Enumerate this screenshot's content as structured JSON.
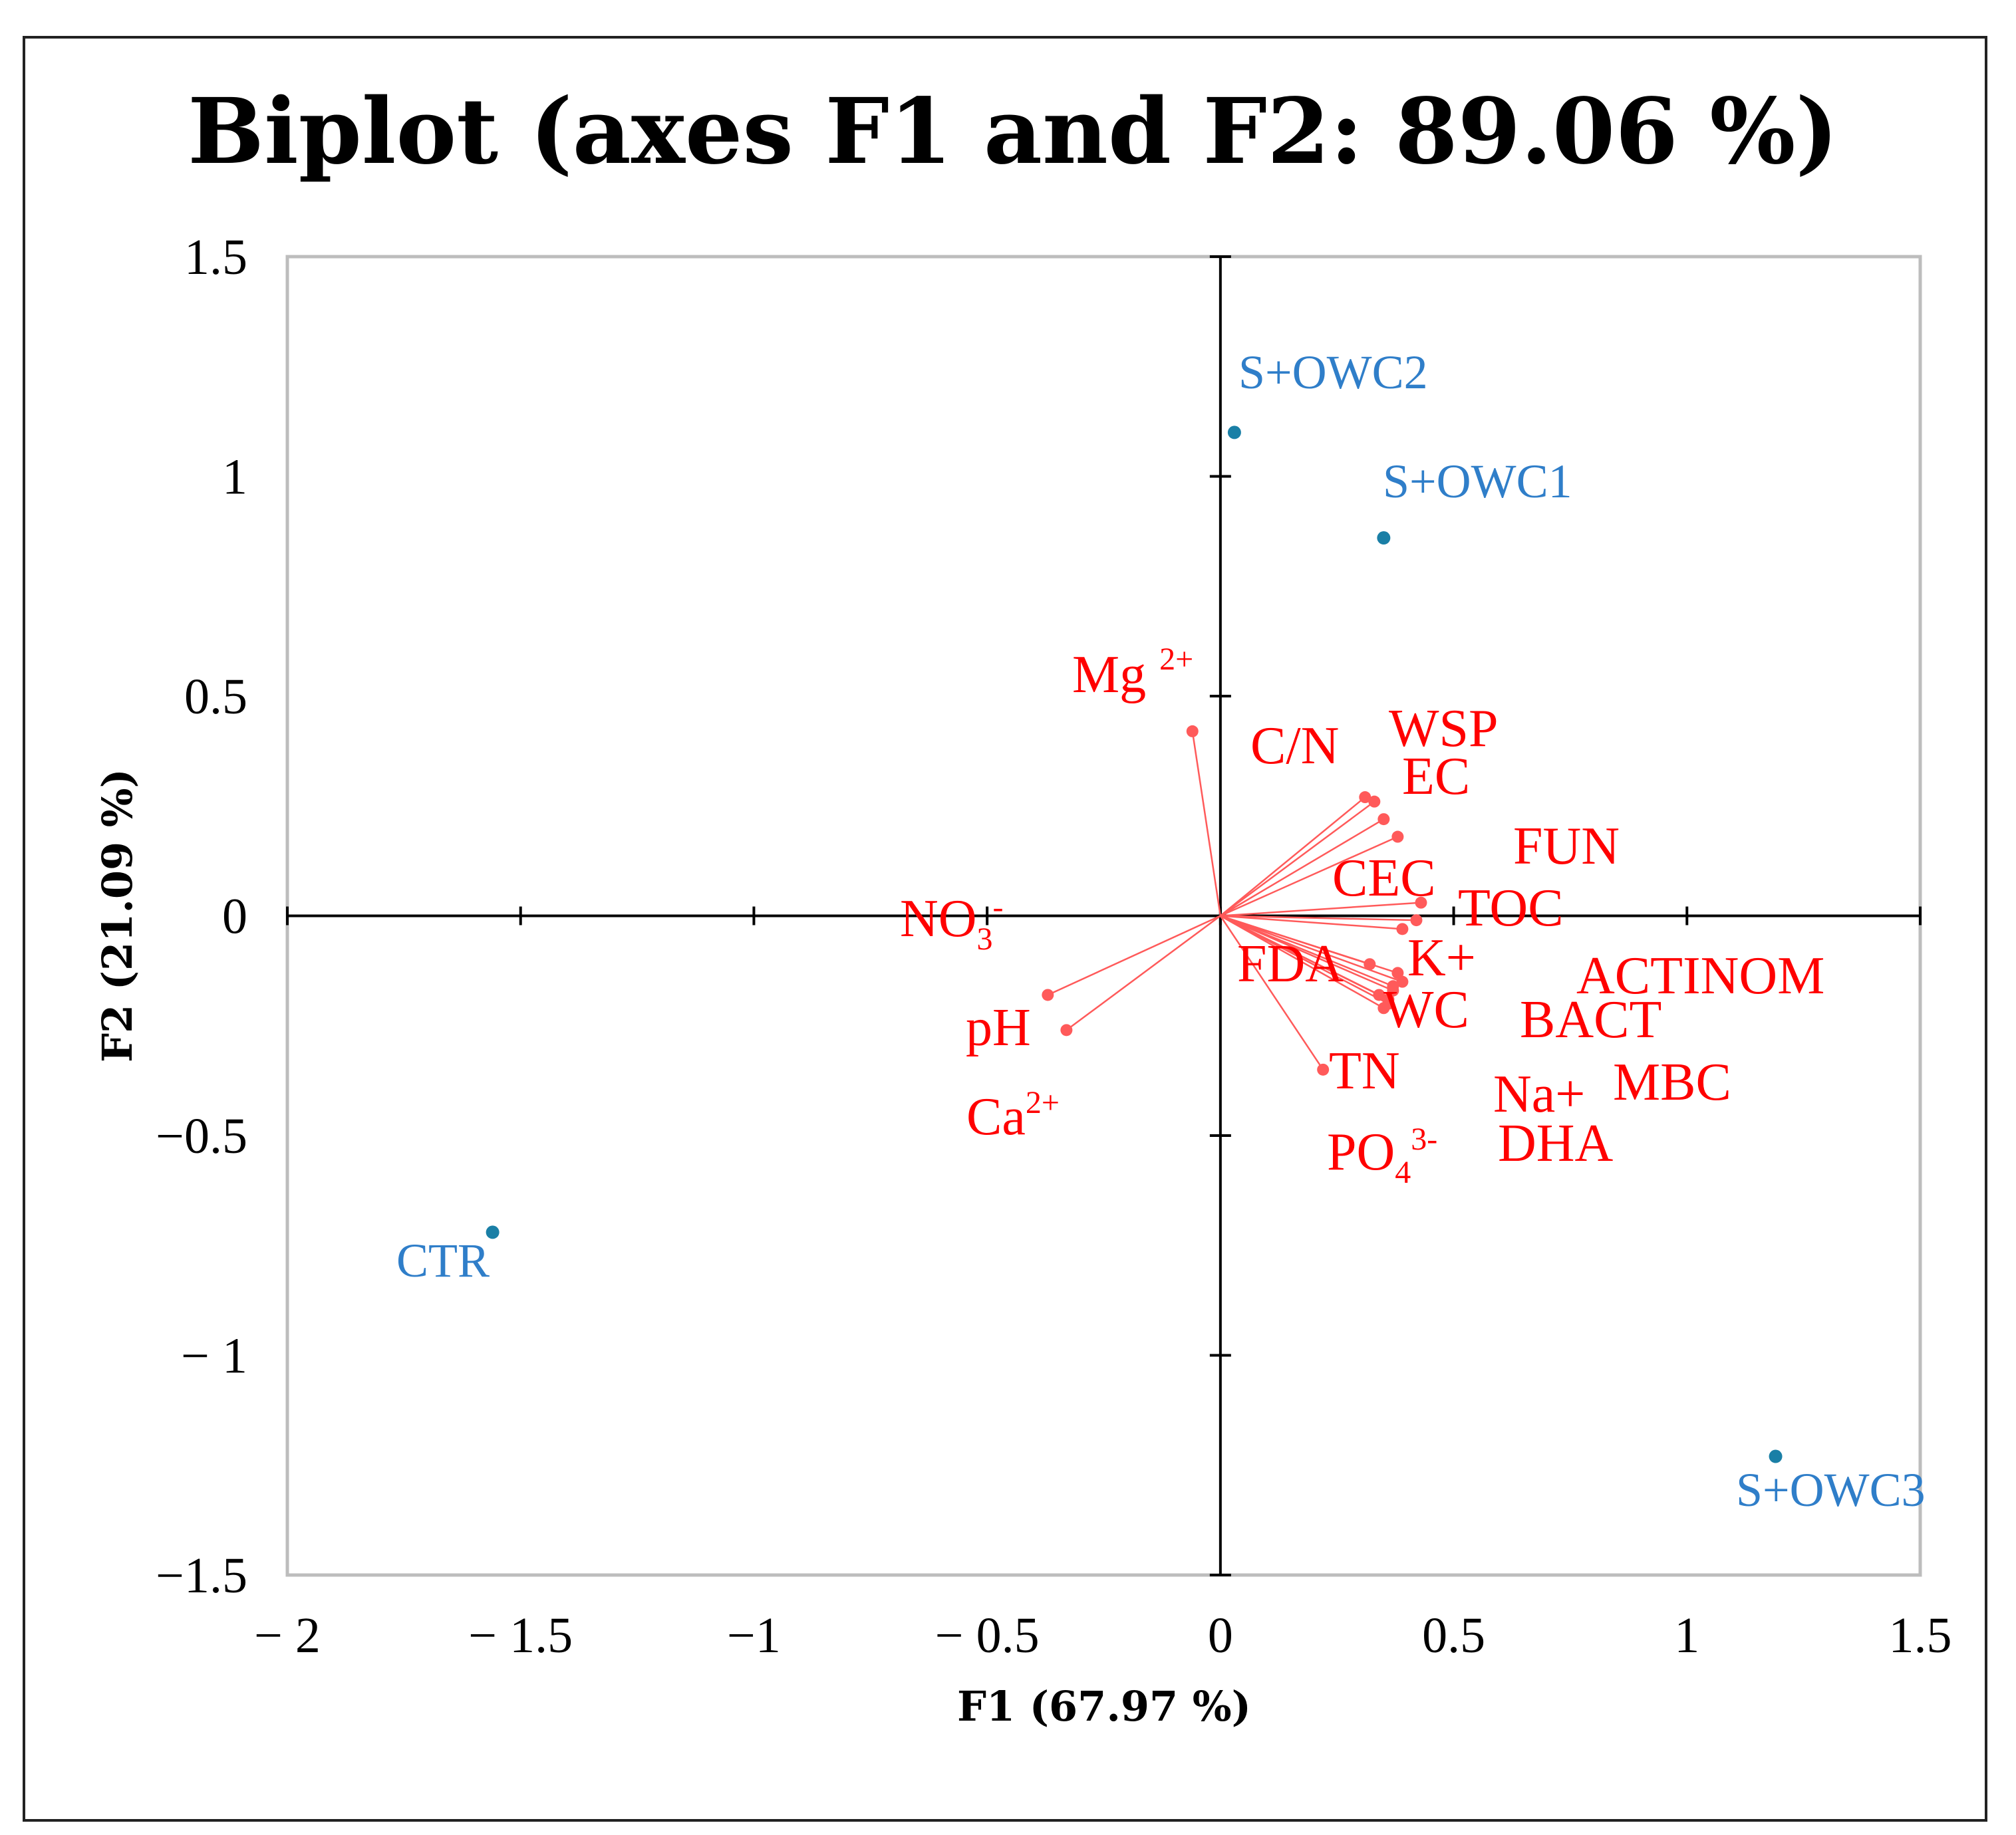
{
  "chart_data": {
    "type": "scatter",
    "subtype": "pca-biplot",
    "title": "Biplot (axes F1 and F2: 89.06 %)",
    "xlabel": "F1 (67.97 %)",
    "ylabel": "F2 (21.09 %)",
    "xlim": [
      -2,
      1.5
    ],
    "ylim": [
      -1.5,
      1.5
    ],
    "xticks": [
      -2,
      -1.5,
      -1,
      -0.5,
      0,
      0.5,
      1,
      1.5
    ],
    "xtick_labels": [
      "− 2",
      "− 1.5",
      "−1",
      "− 0.5",
      "0",
      "0.5",
      "1",
      "1.5"
    ],
    "yticks": [
      1.5,
      1,
      0.5,
      0,
      -0.5,
      -1,
      -1.5
    ],
    "ytick_labels": [
      "1.5",
      "1",
      "0.5",
      "0",
      "−0.5",
      "− 1",
      "−1.5"
    ],
    "grid": false,
    "colors": {
      "observations": "#1a7fa6",
      "observation_labels": "#2f7ec9",
      "variables": "#ff0000",
      "vectors": "#ff5a5a",
      "axes": "#000000",
      "border": "#bdbdbd"
    },
    "observations": [
      {
        "name": "S+OWC2",
        "x": 0.03,
        "y": 1.1
      },
      {
        "name": "S+OWC1",
        "x": 0.35,
        "y": 0.86
      },
      {
        "name": "CTR",
        "x": -1.56,
        "y": -0.72
      },
      {
        "name": "S+OWC3",
        "x": 1.19,
        "y": -1.23
      }
    ],
    "variables": [
      {
        "name": "Mg",
        "sup": "2+",
        "x": -0.06,
        "y": 0.42
      },
      {
        "name": "C/N",
        "x": 0.31,
        "y": 0.27
      },
      {
        "name": "WSP",
        "x": 0.33,
        "y": 0.26
      },
      {
        "name": "EC",
        "x": 0.35,
        "y": 0.22
      },
      {
        "name": "FUN",
        "x": 0.38,
        "y": 0.18
      },
      {
        "name": "CEC",
        "x": 0.43,
        "y": 0.03
      },
      {
        "name": "TOC",
        "x": 0.42,
        "y": -0.01
      },
      {
        "name": "NO",
        "sub": "3",
        "sup": "-",
        "x": 0.39,
        "y": -0.03
      },
      {
        "name": "FDA",
        "x": 0.32,
        "y": -0.11
      },
      {
        "name": "K+",
        "x": 0.38,
        "y": -0.13
      },
      {
        "name": "ACTINOM",
        "x": 0.39,
        "y": -0.15
      },
      {
        "name": "WC",
        "x": 0.37,
        "y": -0.17
      },
      {
        "name": "BACT",
        "x": 0.36,
        "y": -0.19
      },
      {
        "name": "Na+",
        "x": 0.35,
        "y": -0.21
      },
      {
        "name": "pH",
        "x": -0.37,
        "y": -0.18
      },
      {
        "name": "Ca",
        "sup": "2+",
        "x": -0.33,
        "y": -0.26
      },
      {
        "name": "TN",
        "x": 0.22,
        "y": -0.35
      },
      {
        "name": "MBC",
        "x": 0.34,
        "y": -0.18
      },
      {
        "name": "DHA",
        "x": 0.36,
        "y": -0.2
      },
      {
        "name": "PO",
        "sub": "4",
        "sup": "3-",
        "x": 0.37,
        "y": -0.16
      }
    ]
  }
}
